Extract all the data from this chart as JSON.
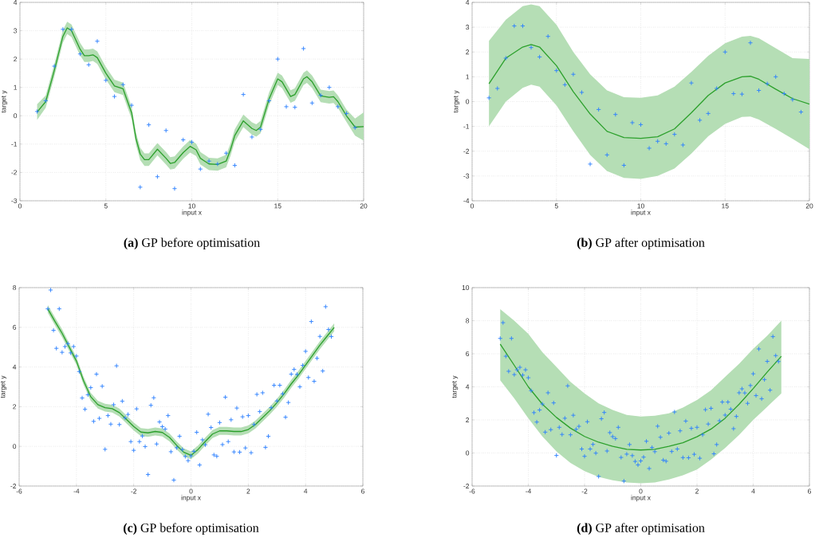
{
  "chart_data": [
    {
      "type": "line",
      "title": "**(a)** GP before optimisation",
      "xlabel": "input x",
      "ylabel": "target y",
      "xlim": [
        0,
        20
      ],
      "ylim": [
        -3,
        4
      ],
      "xticks": [
        0,
        5,
        10,
        15,
        20
      ],
      "yticks": [
        -3,
        -2,
        -1,
        0,
        1,
        2,
        3,
        4
      ],
      "grid": true,
      "series": [
        {
          "type": "line",
          "color": "#2ca02c",
          "marker": "none",
          "x": [
            1,
            1.5,
            2,
            2.5,
            2.75,
            3,
            3.5,
            3.75,
            4,
            4.25,
            4.5,
            5,
            5.5,
            6,
            6.5,
            6.75,
            7,
            7.25,
            7.5,
            8,
            8.5,
            8.75,
            9,
            9.5,
            9.9,
            10.25,
            10.5,
            11,
            11.5,
            12,
            12.25,
            12.5,
            13,
            13.5,
            13.75,
            14,
            14.5,
            15,
            15.25,
            15.75,
            16,
            16.5,
            16.7,
            17,
            17.5,
            18,
            18.25,
            18.5,
            19,
            19.5,
            20
          ],
          "values": [
            0.13,
            0.5,
            1.6,
            2.8,
            3.1,
            3.0,
            2.35,
            2.12,
            2.12,
            2.15,
            2.05,
            1.5,
            1.05,
            0.95,
            0.1,
            -0.8,
            -1.35,
            -1.55,
            -1.55,
            -1.18,
            -1.5,
            -1.68,
            -1.65,
            -1.3,
            -1.08,
            -1.2,
            -1.5,
            -1.7,
            -1.72,
            -1.6,
            -1.2,
            -0.7,
            -0.18,
            -0.45,
            -0.52,
            -0.4,
            0.6,
            1.3,
            1.2,
            0.68,
            0.75,
            1.3,
            1.38,
            1.2,
            0.7,
            0.65,
            0.67,
            0.5,
            0.0,
            -0.4,
            -0.38
          ],
          "upper": [
            0.41,
            0.72,
            1.82,
            3.02,
            3.32,
            3.22,
            2.57,
            2.34,
            2.34,
            2.37,
            2.27,
            1.72,
            1.27,
            1.17,
            0.32,
            -0.58,
            -1.13,
            -1.33,
            -1.33,
            -0.96,
            -1.28,
            -1.46,
            -1.43,
            -1.08,
            -0.86,
            -0.98,
            -1.28,
            -1.48,
            -1.5,
            -1.38,
            -0.98,
            -0.48,
            0.04,
            -0.23,
            -0.3,
            -0.18,
            0.82,
            1.52,
            1.42,
            0.9,
            0.97,
            1.52,
            1.6,
            1.42,
            0.92,
            0.87,
            0.89,
            0.72,
            0.22,
            -0.1,
            0.12
          ],
          "lower": [
            -0.15,
            0.28,
            1.38,
            2.58,
            2.88,
            2.78,
            2.13,
            1.9,
            1.9,
            1.93,
            1.83,
            1.28,
            0.83,
            0.73,
            -0.12,
            -1.02,
            -1.57,
            -1.77,
            -1.77,
            -1.4,
            -1.72,
            -1.9,
            -1.87,
            -1.52,
            -1.3,
            -1.42,
            -1.72,
            -1.92,
            -1.94,
            -1.82,
            -1.42,
            -0.92,
            -0.4,
            -0.67,
            -0.74,
            -0.62,
            0.38,
            1.08,
            0.98,
            0.46,
            0.53,
            1.08,
            1.16,
            0.98,
            0.48,
            0.43,
            0.45,
            0.28,
            -0.22,
            -0.7,
            -0.88
          ]
        },
        {
          "type": "scatter",
          "color": "#2a7fff",
          "marker": "cross",
          "x": [
            1,
            1.5,
            2,
            2.5,
            3,
            3.5,
            4,
            4.5,
            5,
            5.5,
            6,
            6.5,
            7,
            7.5,
            8,
            8.5,
            9,
            9.5,
            10,
            10.5,
            11,
            11.5,
            12,
            12.5,
            13,
            13.5,
            14,
            14.5,
            15,
            15.5,
            16,
            16.5,
            17,
            17.5,
            18,
            18.5,
            19,
            19.5
          ],
          "values": [
            0.15,
            0.53,
            1.75,
            3.05,
            3.05,
            2.18,
            1.8,
            2.63,
            1.25,
            0.68,
            1.1,
            0.37,
            -2.52,
            -0.32,
            -2.15,
            -0.52,
            -2.57,
            -0.85,
            -0.93,
            -1.88,
            -1.6,
            -1.7,
            -1.32,
            -1.75,
            0.75,
            -0.75,
            -0.48,
            0.53,
            2.0,
            0.32,
            0.3,
            2.37,
            0.45,
            0.72,
            1.0,
            0.32,
            0.08,
            -0.42
          ]
        }
      ]
    },
    {
      "type": "line",
      "title": "**(b)** GP after optimisation",
      "xlabel": "input x",
      "ylabel": "target y",
      "xlim": [
        0,
        20
      ],
      "ylim": [
        -4,
        4
      ],
      "xticks": [
        0,
        5,
        10,
        15,
        20
      ],
      "yticks": [
        -4,
        -3,
        -2,
        -1,
        0,
        1,
        2,
        3,
        4
      ],
      "grid": true,
      "series": [
        {
          "type": "line",
          "color": "#2ca02c",
          "marker": "none",
          "x": [
            1,
            2,
            3,
            3.5,
            4,
            5,
            6,
            7,
            8,
            9,
            10,
            11,
            12,
            13,
            14,
            15,
            16,
            16.5,
            17,
            18,
            19,
            20
          ],
          "values": [
            0.72,
            1.75,
            2.2,
            2.3,
            2.2,
            1.45,
            0.4,
            -0.5,
            -1.2,
            -1.45,
            -1.48,
            -1.42,
            -1.1,
            -0.45,
            0.25,
            0.75,
            1.0,
            1.02,
            0.9,
            0.5,
            0.12,
            -0.1
          ],
          "upper": [
            2.45,
            3.3,
            3.85,
            3.92,
            3.85,
            3.1,
            2.0,
            1.1,
            0.45,
            0.18,
            0.15,
            0.25,
            0.6,
            1.2,
            1.85,
            2.35,
            2.62,
            2.65,
            2.55,
            2.15,
            1.75,
            1.72
          ],
          "lower": [
            -1.0,
            0.0,
            0.55,
            0.68,
            0.6,
            -0.15,
            -1.2,
            -2.15,
            -2.8,
            -3.08,
            -3.12,
            -3.0,
            -2.7,
            -2.1,
            -1.4,
            -0.9,
            -0.62,
            -0.6,
            -0.72,
            -1.1,
            -1.5,
            -1.92
          ]
        },
        {
          "type": "scatter",
          "color": "#2a7fff",
          "marker": "cross",
          "x": [
            1,
            1.5,
            2,
            2.5,
            3,
            3.5,
            4,
            4.5,
            5,
            5.5,
            6,
            6.5,
            7,
            7.5,
            8,
            8.5,
            9,
            9.5,
            10,
            10.5,
            11,
            11.5,
            12,
            12.5,
            13,
            13.5,
            14,
            14.5,
            15,
            15.5,
            16,
            16.5,
            17,
            17.5,
            18,
            18.5,
            19,
            19.5
          ],
          "values": [
            0.15,
            0.53,
            1.75,
            3.05,
            3.05,
            2.18,
            1.8,
            2.63,
            1.25,
            0.68,
            1.1,
            0.37,
            -2.52,
            -0.32,
            -2.15,
            -0.52,
            -2.57,
            -0.85,
            -0.93,
            -1.88,
            -1.6,
            -1.7,
            -1.32,
            -1.75,
            0.75,
            -0.75,
            -0.48,
            0.53,
            2.0,
            0.32,
            0.3,
            2.37,
            0.45,
            0.72,
            1.0,
            0.32,
            0.08,
            -0.42
          ]
        }
      ]
    },
    {
      "type": "line",
      "title": "**(c)** GP before optimisation",
      "xlabel": "input x",
      "ylabel": "target y",
      "xlim": [
        -6,
        6
      ],
      "ylim": [
        -2,
        8
      ],
      "xticks": [
        -6,
        -4,
        -2,
        0,
        2,
        4,
        6
      ],
      "yticks": [
        -2,
        0,
        2,
        4,
        6,
        8
      ],
      "grid": true,
      "series": [
        {
          "type": "line",
          "color": "#2ca02c",
          "marker": "none",
          "x": [
            -5,
            -4.75,
            -4.5,
            -4.25,
            -4,
            -3.75,
            -3.5,
            -3.25,
            -3,
            -2.75,
            -2.5,
            -2.25,
            -2,
            -1.75,
            -1.5,
            -1.25,
            -1,
            -0.75,
            -0.5,
            -0.25,
            0,
            0.25,
            0.5,
            0.75,
            1,
            1.25,
            1.5,
            1.75,
            2,
            2.25,
            2.5,
            2.75,
            3,
            3.25,
            3.5,
            3.75,
            4,
            4.25,
            4.5,
            4.75,
            5
          ],
          "values": [
            6.93,
            6.3,
            5.7,
            5.0,
            4.3,
            3.3,
            2.5,
            2.1,
            1.95,
            1.9,
            1.7,
            1.35,
            1.0,
            0.72,
            0.68,
            0.75,
            0.7,
            0.45,
            0.05,
            -0.3,
            -0.45,
            -0.15,
            0.25,
            0.62,
            0.78,
            0.78,
            0.75,
            0.75,
            0.85,
            1.1,
            1.45,
            1.8,
            2.2,
            2.65,
            3.15,
            3.6,
            4.1,
            4.6,
            5.1,
            5.55,
            6.0
          ],
          "upper": [
            7.13,
            6.5,
            5.9,
            5.2,
            4.5,
            3.5,
            2.7,
            2.3,
            2.15,
            2.1,
            1.9,
            1.55,
            1.2,
            0.92,
            0.88,
            0.95,
            0.9,
            0.65,
            0.25,
            -0.1,
            -0.25,
            0.05,
            0.45,
            0.82,
            0.98,
            0.98,
            0.95,
            0.95,
            1.05,
            1.3,
            1.65,
            2.0,
            2.4,
            2.85,
            3.35,
            3.8,
            4.3,
            4.8,
            5.3,
            5.75,
            6.2
          ],
          "lower": [
            6.73,
            6.1,
            5.5,
            4.8,
            4.1,
            3.1,
            2.3,
            1.9,
            1.75,
            1.7,
            1.5,
            1.15,
            0.8,
            0.52,
            0.48,
            0.55,
            0.5,
            0.25,
            -0.15,
            -0.5,
            -0.65,
            -0.35,
            0.05,
            0.42,
            0.58,
            0.58,
            0.55,
            0.55,
            0.65,
            0.9,
            1.25,
            1.6,
            2.0,
            2.45,
            2.95,
            3.4,
            3.9,
            4.4,
            4.9,
            5.35,
            5.8
          ]
        },
        {
          "type": "scatter",
          "color": "#2a7fff",
          "marker": "cross",
          "x": [
            -5.0,
            -4.9,
            -4.8,
            -4.7,
            -4.6,
            -4.5,
            -4.4,
            -4.3,
            -4.2,
            -4.1,
            -4.0,
            -3.9,
            -3.8,
            -3.7,
            -3.6,
            -3.5,
            -3.4,
            -3.3,
            -3.2,
            -3.1,
            -3.0,
            -2.9,
            -2.8,
            -2.7,
            -2.6,
            -2.5,
            -2.4,
            -2.3,
            -2.2,
            -2.1,
            -2.0,
            -1.9,
            -1.8,
            -1.7,
            -1.6,
            -1.5,
            -1.4,
            -1.3,
            -1.2,
            -1.1,
            -1.0,
            -0.9,
            -0.8,
            -0.7,
            -0.6,
            -0.5,
            -0.4,
            -0.3,
            -0.2,
            -0.1,
            0.0,
            0.1,
            0.2,
            0.3,
            0.4,
            0.5,
            0.6,
            0.7,
            0.8,
            0.9,
            1.0,
            1.1,
            1.2,
            1.3,
            1.4,
            1.5,
            1.6,
            1.7,
            1.8,
            1.9,
            2.0,
            2.1,
            2.2,
            2.3,
            2.4,
            2.5,
            2.6,
            2.7,
            2.8,
            2.9,
            3.0,
            3.1,
            3.2,
            3.3,
            3.4,
            3.5,
            3.6,
            3.7,
            3.8,
            3.9,
            4.0,
            4.1,
            4.2,
            4.3,
            4.4,
            4.5,
            4.6,
            4.7,
            4.8,
            4.9
          ],
          "values": [
            6.93,
            7.88,
            5.85,
            4.94,
            6.93,
            4.74,
            5.03,
            5.18,
            4.71,
            5.03,
            4.55,
            3.77,
            2.44,
            1.87,
            2.6,
            2.96,
            1.26,
            3.64,
            1.41,
            3.03,
            -0.15,
            1.55,
            1.12,
            2.1,
            4.06,
            1.1,
            2.28,
            1.43,
            1.61,
            0.24,
            -0.2,
            1.89,
            0.24,
            0.52,
            -0.01,
            -1.42,
            2.07,
            2.45,
            0.12,
            1.23,
            0.99,
            0.87,
            1.55,
            -0.27,
            -1.7,
            -0.07,
            0.51,
            -0.16,
            -0.51,
            -0.72,
            -0.48,
            -0.25,
            0.71,
            -0.94,
            0.33,
            0.08,
            1.62,
            0.95,
            -0.43,
            -0.5,
            1.2,
            0.09,
            2.48,
            0.24,
            1.34,
            -0.28,
            1.93,
            -0.29,
            1.49,
            -0.08,
            1.55,
            -0.32,
            1.1,
            2.62,
            1.75,
            2.7,
            -0.05,
            0.51,
            1.95,
            3.08,
            2.29,
            3.08,
            2.65,
            1.47,
            2.21,
            3.64,
            3.88,
            3.63,
            3.0,
            4.08,
            4.79,
            3.47,
            6.29,
            3.28,
            4.44,
            5.54,
            3.8,
            7.04,
            5.89,
            5.53
          ]
        }
      ]
    },
    {
      "type": "line",
      "title": "**(d)** GP after optimisation",
      "xlabel": "input x",
      "ylabel": "target y",
      "xlim": [
        -6,
        6
      ],
      "ylim": [
        -2,
        10
      ],
      "xticks": [
        -6,
        -4,
        -2,
        0,
        2,
        4,
        6
      ],
      "yticks": [
        -2,
        0,
        2,
        4,
        6,
        8,
        10
      ],
      "grid": true,
      "series": [
        {
          "type": "line",
          "color": "#2ca02c",
          "marker": "none",
          "x": [
            -5,
            -4.5,
            -4,
            -3.5,
            -3,
            -2.5,
            -2,
            -1.5,
            -1,
            -0.5,
            0,
            0.5,
            1,
            1.5,
            2,
            2.5,
            3,
            3.5,
            4,
            4.5,
            5
          ],
          "values": [
            6.58,
            5.3,
            4.0,
            2.95,
            2.15,
            1.5,
            1.0,
            0.65,
            0.4,
            0.22,
            0.18,
            0.22,
            0.4,
            0.62,
            0.98,
            1.45,
            2.1,
            2.95,
            3.9,
            4.9,
            5.85
          ],
          "upper": [
            8.7,
            8.0,
            7.2,
            6.1,
            5.2,
            4.3,
            3.6,
            3.0,
            2.6,
            2.3,
            2.2,
            2.25,
            2.4,
            2.75,
            3.2,
            3.8,
            4.6,
            5.4,
            6.3,
            7.1,
            8.0
          ],
          "lower": [
            4.4,
            3.3,
            2.1,
            1.0,
            0.1,
            -0.6,
            -1.1,
            -1.45,
            -1.65,
            -1.78,
            -1.83,
            -1.78,
            -1.6,
            -1.35,
            -1.0,
            -0.4,
            0.3,
            1.1,
            2.0,
            2.8,
            3.6
          ]
        },
        {
          "type": "scatter",
          "color": "#2a7fff",
          "marker": "cross",
          "x": [
            -5.0,
            -4.9,
            -4.8,
            -4.7,
            -4.6,
            -4.5,
            -4.4,
            -4.3,
            -4.2,
            -4.1,
            -4.0,
            -3.9,
            -3.8,
            -3.7,
            -3.6,
            -3.5,
            -3.4,
            -3.3,
            -3.2,
            -3.1,
            -3.0,
            -2.9,
            -2.8,
            -2.7,
            -2.6,
            -2.5,
            -2.4,
            -2.3,
            -2.2,
            -2.1,
            -2.0,
            -1.9,
            -1.8,
            -1.7,
            -1.6,
            -1.5,
            -1.4,
            -1.3,
            -1.2,
            -1.1,
            -1.0,
            -0.9,
            -0.8,
            -0.7,
            -0.6,
            -0.5,
            -0.4,
            -0.3,
            -0.2,
            -0.1,
            0.0,
            0.1,
            0.2,
            0.3,
            0.4,
            0.5,
            0.6,
            0.7,
            0.8,
            0.9,
            1.0,
            1.1,
            1.2,
            1.3,
            1.4,
            1.5,
            1.6,
            1.7,
            1.8,
            1.9,
            2.0,
            2.1,
            2.2,
            2.3,
            2.4,
            2.5,
            2.6,
            2.7,
            2.8,
            2.9,
            3.0,
            3.1,
            3.2,
            3.3,
            3.4,
            3.5,
            3.6,
            3.7,
            3.8,
            3.9,
            4.0,
            4.1,
            4.2,
            4.3,
            4.4,
            4.5,
            4.6,
            4.7,
            4.8,
            4.9
          ],
          "values": [
            6.93,
            7.88,
            5.85,
            4.94,
            6.93,
            4.74,
            5.03,
            5.18,
            4.71,
            5.03,
            4.55,
            3.77,
            2.44,
            1.87,
            2.6,
            2.96,
            1.26,
            3.64,
            1.41,
            3.03,
            -0.15,
            1.55,
            1.12,
            2.1,
            4.06,
            1.1,
            2.28,
            1.43,
            1.61,
            0.24,
            -0.2,
            1.89,
            0.24,
            0.52,
            -0.01,
            -1.42,
            2.07,
            2.45,
            0.12,
            1.23,
            0.99,
            0.87,
            1.55,
            -0.27,
            -1.7,
            -0.07,
            0.51,
            -0.16,
            -0.51,
            -0.72,
            -0.48,
            -0.25,
            0.71,
            -0.94,
            0.33,
            0.08,
            1.62,
            0.95,
            -0.43,
            -0.5,
            1.2,
            0.09,
            2.48,
            0.24,
            1.34,
            -0.28,
            1.93,
            -0.29,
            1.49,
            -0.08,
            1.55,
            -0.32,
            1.1,
            2.62,
            1.75,
            2.7,
            -0.05,
            0.51,
            1.95,
            3.08,
            2.29,
            3.08,
            2.65,
            1.47,
            2.21,
            3.64,
            3.88,
            3.63,
            3.0,
            4.08,
            4.79,
            3.47,
            6.29,
            3.28,
            4.44,
            5.54,
            3.8,
            7.04,
            5.89,
            5.53
          ]
        }
      ]
    }
  ]
}
